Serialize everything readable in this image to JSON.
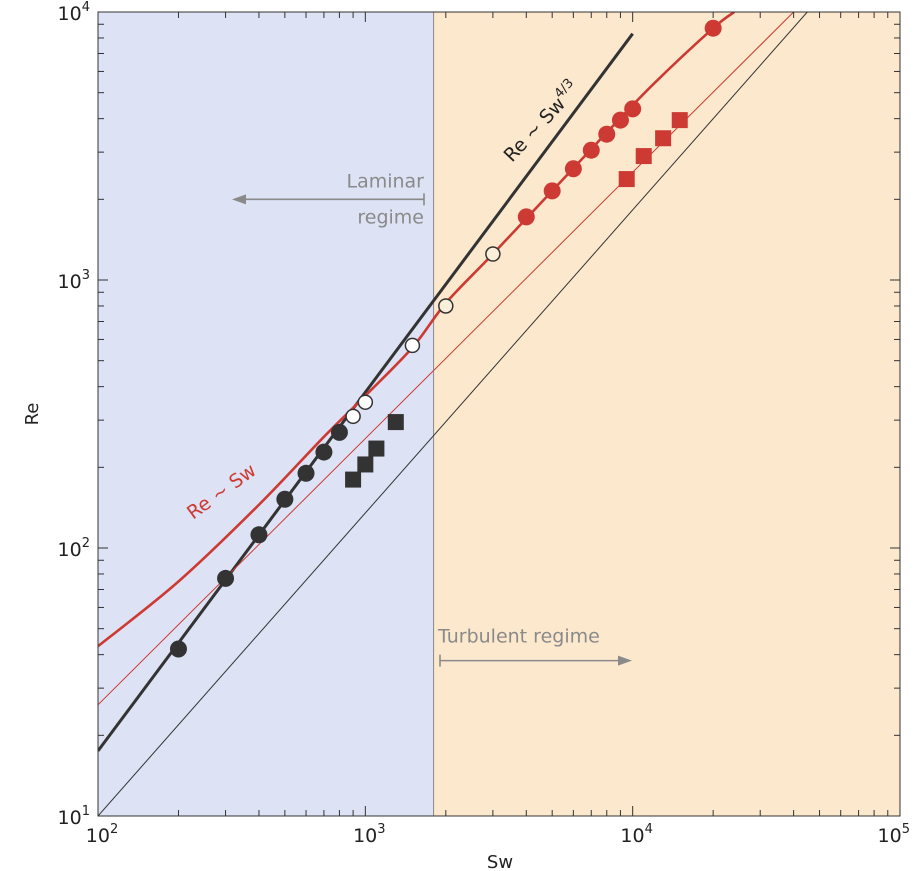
{
  "chart_data": {
    "type": "scatter",
    "title": "",
    "xlabel": "Sw",
    "ylabel": "Re",
    "x_scale": "log",
    "y_scale": "log",
    "xlim": [
      100,
      100000
    ],
    "ylim": [
      10,
      10000
    ],
    "x_ticks": [
      {
        "value": 100,
        "label": "10",
        "exp": "2"
      },
      {
        "value": 1000,
        "label": "10",
        "exp": "3"
      },
      {
        "value": 10000,
        "label": "10",
        "exp": "4"
      },
      {
        "value": 100000,
        "label": "10",
        "exp": "5"
      }
    ],
    "y_ticks": [
      {
        "value": 10,
        "label": "10",
        "exp": "1"
      },
      {
        "value": 100,
        "label": "10",
        "exp": "2"
      },
      {
        "value": 1000,
        "label": "10",
        "exp": "3"
      },
      {
        "value": 10000,
        "label": "10",
        "exp": "4"
      }
    ],
    "grid": false,
    "regions": [
      {
        "name": "laminar",
        "x_from": 100,
        "x_to": 1800,
        "color": "#dde2f4"
      },
      {
        "name": "turbulent",
        "x_from": 1800,
        "x_to": 100000,
        "color": "#fce8cd"
      }
    ],
    "colors": {
      "dark": "#333333",
      "red": "#cc3a33",
      "gray_annotation": "#8a8a8a",
      "divider": "#8a8a8a",
      "open_marker_fill": "#ffffff",
      "transition_marker_fill": "#fbefd9"
    },
    "lines": [
      {
        "id": "black-thick",
        "color": "#333333",
        "width": 3,
        "points": [
          [
            100,
            17.5
          ],
          [
            10000,
            8300
          ]
        ]
      },
      {
        "id": "black-thin",
        "color": "#333333",
        "width": 1,
        "points": [
          [
            100,
            10
          ],
          [
            45000,
            10000
          ]
        ]
      },
      {
        "id": "red-thick",
        "color": "#cc3a33",
        "width": 2.6,
        "curved": true,
        "points": [
          [
            100,
            43
          ],
          [
            200,
            75
          ],
          [
            400,
            145
          ],
          [
            700,
            260
          ],
          [
            1000,
            370
          ],
          [
            1500,
            560
          ],
          [
            2000,
            820
          ],
          [
            3000,
            1250
          ],
          [
            5000,
            2150
          ],
          [
            8000,
            3550
          ],
          [
            12000,
            5400
          ],
          [
            20000,
            8700
          ],
          [
            24000,
            10000
          ]
        ]
      },
      {
        "id": "red-thin",
        "color": "#cc3a33",
        "width": 1,
        "points": [
          [
            100,
            26
          ],
          [
            40000,
            10000
          ]
        ]
      }
    ],
    "series": [
      {
        "marker": "filled-circle",
        "color": "#333333",
        "x": [
          200,
          300,
          400,
          500,
          600,
          700,
          800
        ],
        "y": [
          42,
          77,
          112,
          152,
          190,
          228,
          270
        ]
      },
      {
        "marker": "open-circle",
        "color": "#333333",
        "x": [
          900,
          1000,
          1500
        ],
        "y": [
          310,
          350,
          570
        ]
      },
      {
        "marker": "open-circle",
        "color": "#333333",
        "x": [
          2000,
          3000
        ],
        "y": [
          800,
          1250
        ]
      },
      {
        "marker": "filled-square",
        "color": "#333333",
        "x": [
          900,
          1000,
          1100,
          1300
        ],
        "y": [
          180,
          205,
          235,
          295
        ]
      },
      {
        "marker": "filled-circle",
        "color": "#cc3a33",
        "x": [
          4000,
          5000,
          6000,
          7000,
          8000,
          9000,
          10000,
          20000
        ],
        "y": [
          1720,
          2150,
          2600,
          3050,
          3500,
          3950,
          4350,
          8700
        ]
      },
      {
        "marker": "filled-square",
        "color": "#cc3a33",
        "x": [
          9500,
          11000,
          13000,
          15000
        ],
        "y": [
          2380,
          2900,
          3380,
          3950
        ]
      }
    ],
    "annotations": {
      "laminar_line1": "Laminar",
      "laminar_line2": "regime",
      "turbulent": "Turbulent regime",
      "re_sw": "Re ~ Sw",
      "re_sw43_base": "Re ~ Sw",
      "re_sw43_exp": "4/3"
    }
  }
}
